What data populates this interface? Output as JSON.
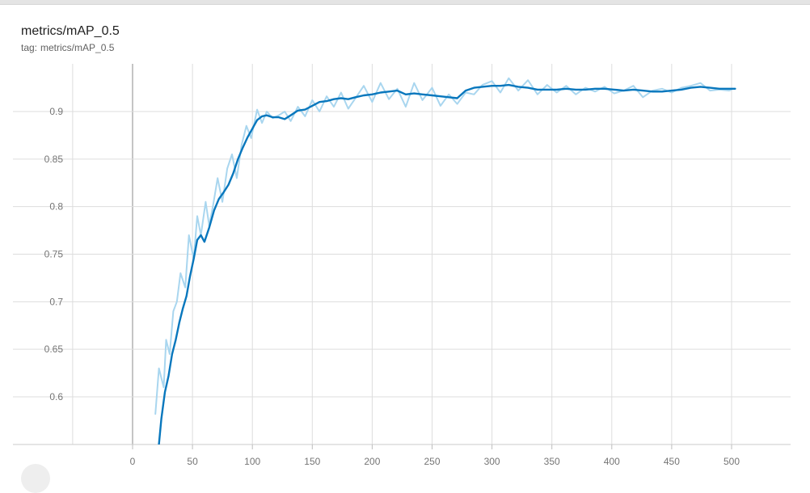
{
  "card": {
    "title": "metrics/mAP_0.5",
    "tag_label": "tag:",
    "tag_value": "metrics/mAP_0.5"
  },
  "colors": {
    "smoothed_line": "#0877bd",
    "raw_line": "#a9d6ef",
    "grid": "#dddddd",
    "zero_axis": "#9e9e9e",
    "tick_text": "#757575"
  },
  "chart_data": {
    "type": "line",
    "title": "metrics/mAP_0.5",
    "xlabel": "",
    "ylabel": "",
    "xlim": [
      -50,
      550
    ],
    "ylim": [
      0.55,
      0.94
    ],
    "x_ticks": [
      0,
      50,
      100,
      150,
      200,
      250,
      300,
      350,
      400,
      450,
      500
    ],
    "y_ticks": [
      0.6,
      0.65,
      0.7,
      0.75,
      0.8,
      0.85,
      0.9
    ],
    "grid": true,
    "legend": "none",
    "series": [
      {
        "role": "raw",
        "x": [
          19,
          22,
          26,
          28,
          31,
          34,
          37,
          40,
          44,
          47,
          51,
          54,
          57,
          61,
          64,
          67,
          71,
          75,
          79,
          83,
          87,
          91,
          95,
          99,
          104,
          108,
          112,
          117,
          122,
          127,
          132,
          138,
          144,
          150,
          156,
          162,
          168,
          174,
          180,
          186,
          193,
          200,
          207,
          214,
          221,
          228,
          235,
          242,
          250,
          257,
          264,
          271,
          278,
          285,
          292,
          300,
          307,
          314,
          322,
          330,
          338,
          346,
          354,
          362,
          370,
          378,
          386,
          394,
          402,
          410,
          418,
          426,
          434,
          442,
          450,
          458,
          466,
          474,
          482,
          490,
          498,
          500
        ],
        "y": [
          0.582,
          0.63,
          0.61,
          0.66,
          0.645,
          0.69,
          0.7,
          0.73,
          0.715,
          0.77,
          0.745,
          0.79,
          0.77,
          0.805,
          0.78,
          0.8,
          0.83,
          0.805,
          0.84,
          0.855,
          0.83,
          0.865,
          0.885,
          0.872,
          0.902,
          0.888,
          0.9,
          0.893,
          0.896,
          0.9,
          0.89,
          0.905,
          0.895,
          0.912,
          0.9,
          0.916,
          0.905,
          0.92,
          0.903,
          0.914,
          0.927,
          0.91,
          0.93,
          0.913,
          0.924,
          0.905,
          0.93,
          0.912,
          0.925,
          0.906,
          0.918,
          0.908,
          0.92,
          0.918,
          0.928,
          0.932,
          0.92,
          0.935,
          0.922,
          0.933,
          0.918,
          0.928,
          0.92,
          0.927,
          0.918,
          0.925,
          0.921,
          0.926,
          0.919,
          0.922,
          0.927,
          0.915,
          0.922,
          0.924,
          0.92,
          0.925,
          0.927,
          0.93,
          0.922,
          0.923,
          0.922,
          0.923
        ]
      },
      {
        "role": "smoothed",
        "x": [
          22,
          24,
          27,
          30,
          33,
          36,
          39,
          42,
          45,
          48,
          51,
          54,
          57,
          60,
          64,
          68,
          72,
          76,
          80,
          84,
          88,
          92,
          96,
          100,
          104,
          108,
          112,
          117,
          122,
          127,
          132,
          138,
          144,
          150,
          156,
          162,
          168,
          174,
          180,
          186,
          193,
          200,
          207,
          214,
          221,
          228,
          235,
          242,
          250,
          257,
          264,
          271,
          278,
          285,
          292,
          300,
          307,
          314,
          322,
          330,
          338,
          346,
          354,
          362,
          370,
          378,
          386,
          394,
          402,
          410,
          418,
          426,
          434,
          442,
          450,
          458,
          466,
          474,
          482,
          490,
          498,
          503
        ],
        "y": [
          0.55,
          0.577,
          0.605,
          0.622,
          0.645,
          0.66,
          0.678,
          0.693,
          0.706,
          0.727,
          0.745,
          0.765,
          0.77,
          0.763,
          0.778,
          0.796,
          0.808,
          0.815,
          0.823,
          0.835,
          0.85,
          0.862,
          0.873,
          0.882,
          0.891,
          0.895,
          0.896,
          0.894,
          0.894,
          0.892,
          0.896,
          0.901,
          0.902,
          0.906,
          0.91,
          0.911,
          0.913,
          0.914,
          0.913,
          0.915,
          0.917,
          0.918,
          0.92,
          0.921,
          0.922,
          0.918,
          0.919,
          0.918,
          0.917,
          0.916,
          0.915,
          0.914,
          0.922,
          0.925,
          0.926,
          0.927,
          0.927,
          0.928,
          0.926,
          0.925,
          0.923,
          0.923,
          0.923,
          0.924,
          0.923,
          0.923,
          0.924,
          0.924,
          0.923,
          0.922,
          0.923,
          0.922,
          0.921,
          0.921,
          0.922,
          0.923,
          0.925,
          0.926,
          0.925,
          0.924,
          0.924,
          0.924
        ]
      }
    ]
  }
}
